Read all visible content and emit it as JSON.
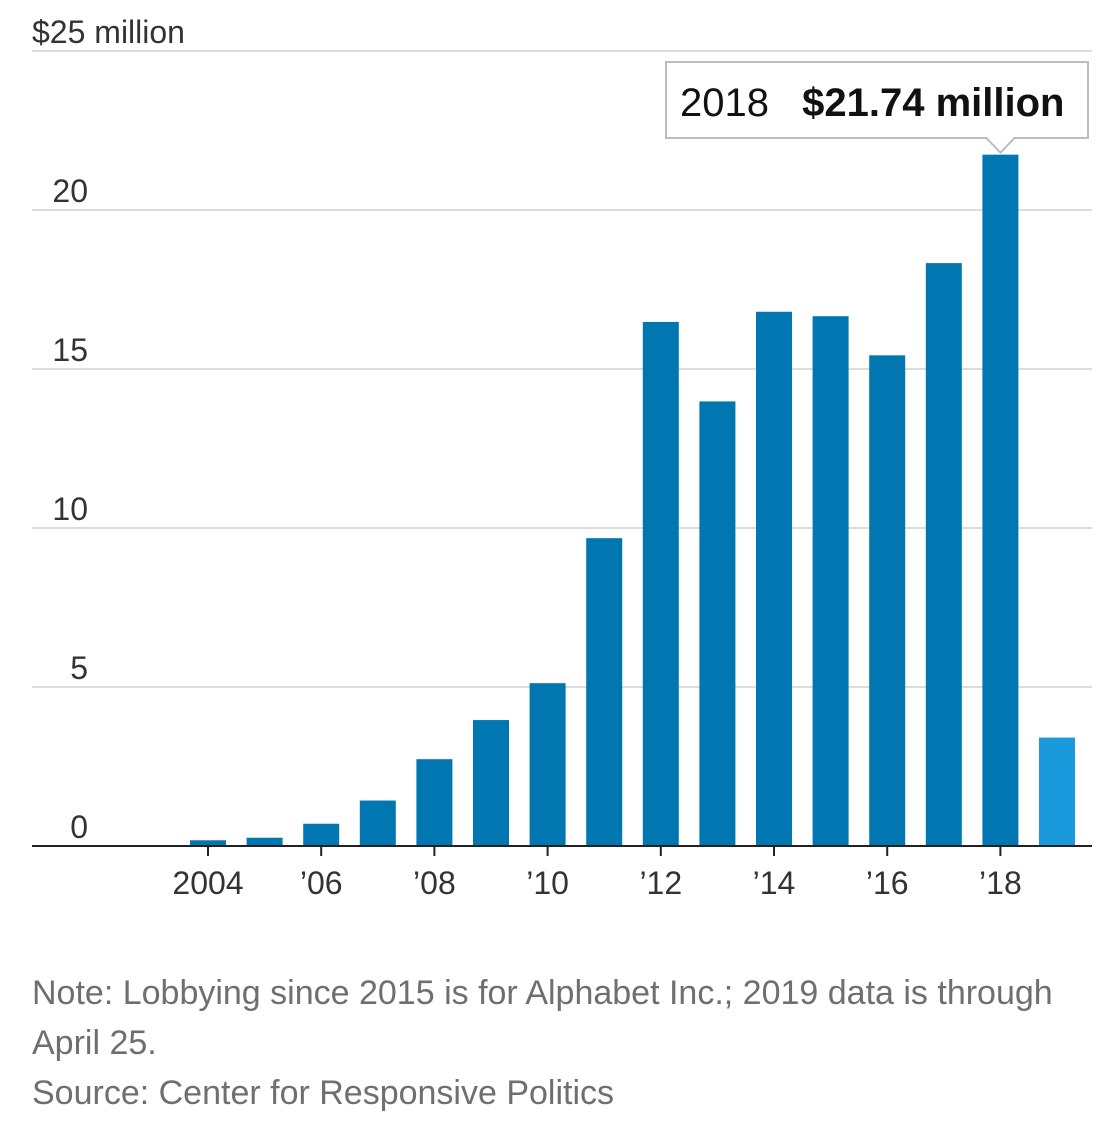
{
  "chart_data": {
    "type": "bar",
    "x": [
      2004,
      2005,
      2006,
      2007,
      2008,
      2009,
      2010,
      2011,
      2012,
      2013,
      2014,
      2015,
      2016,
      2017,
      2018,
      2019
    ],
    "values": [
      0.18,
      0.26,
      0.7,
      1.43,
      2.73,
      3.96,
      5.12,
      9.68,
      16.48,
      13.98,
      16.8,
      16.66,
      15.43,
      18.33,
      21.74,
      3.41
    ],
    "ylabel": "$25 million",
    "ylim": [
      0,
      25
    ],
    "yticks": [
      0,
      5,
      10,
      15,
      20
    ],
    "yticks_labels": [
      "0",
      "5",
      "10",
      "15",
      "20"
    ],
    "xtick_labels": [
      {
        "x": 2004,
        "label": "2004"
      },
      {
        "x": 2006,
        "label": "’06"
      },
      {
        "x": 2008,
        "label": "’08"
      },
      {
        "x": 2010,
        "label": "’10"
      },
      {
        "x": 2012,
        "label": "’12"
      },
      {
        "x": 2014,
        "label": "’14"
      },
      {
        "x": 2016,
        "label": "’16"
      },
      {
        "x": 2018,
        "label": "’18"
      }
    ],
    "grid": true,
    "bar_color": "#0077b0",
    "highlight_year": 2019,
    "highlight_color": "#1a99dc",
    "tooltip": {
      "x": 2018,
      "year_label": "2018",
      "value_label": "$21.74 million"
    }
  },
  "note": "Note: Lobbying since 2015 is for Alphabet Inc.; 2019 data is through April 25.",
  "source": "Source: Center for Responsive Politics"
}
